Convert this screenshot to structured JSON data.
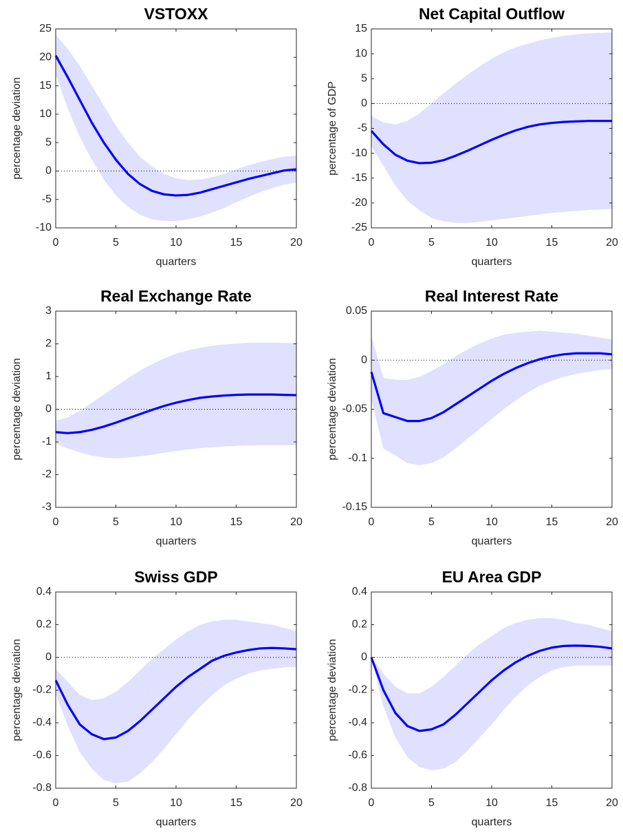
{
  "chart_data": [
    {
      "type": "line",
      "title": "VSTOXX",
      "xlabel": "quarters",
      "ylabel": "percentage deviation",
      "x": [
        0,
        1,
        2,
        3,
        4,
        5,
        6,
        7,
        8,
        9,
        10,
        11,
        12,
        13,
        14,
        15,
        16,
        17,
        18,
        19,
        20
      ],
      "values": [
        20.3,
        16.5,
        12.5,
        8.5,
        5,
        2,
        -0.5,
        -2.3,
        -3.5,
        -4.1,
        -4.3,
        -4.2,
        -3.8,
        -3.2,
        -2.6,
        -2,
        -1.4,
        -0.9,
        -0.4,
        0.1,
        0.3
      ],
      "upper": [
        24,
        21.5,
        18.5,
        15,
        11.5,
        8,
        5,
        2.5,
        0.8,
        -0.5,
        -1.3,
        -1.6,
        -1.5,
        -1.1,
        -0.5,
        0.3,
        1,
        1.6,
        2.1,
        2.5,
        2.7
      ],
      "lower": [
        17,
        11,
        6,
        2,
        -1.5,
        -4.3,
        -6.3,
        -7.7,
        -8.5,
        -8.8,
        -8.8,
        -8.5,
        -8,
        -7.3,
        -6.5,
        -5.5,
        -4.6,
        -3.7,
        -3,
        -2.4,
        -2
      ],
      "color": "#0000ff",
      "band_color": "#e0e0ff",
      "zero_line": true,
      "xlim": [
        0,
        20
      ],
      "xticks": [
        0,
        5,
        10,
        15,
        20
      ],
      "ylim": [
        -10,
        25
      ],
      "yticks": [
        -10,
        -5,
        0,
        5,
        10,
        15,
        20,
        25
      ]
    },
    {
      "type": "line",
      "title": "Net Capital Outflow",
      "xlabel": "quarters",
      "ylabel": "percentage of GDP",
      "x": [
        0,
        1,
        2,
        3,
        4,
        5,
        6,
        7,
        8,
        9,
        10,
        11,
        12,
        13,
        14,
        15,
        16,
        17,
        18,
        19,
        20
      ],
      "values": [
        -5.5,
        -8.2,
        -10.3,
        -11.5,
        -12,
        -11.9,
        -11.4,
        -10.5,
        -9.5,
        -8.4,
        -7.3,
        -6.3,
        -5.4,
        -4.7,
        -4.2,
        -3.9,
        -3.7,
        -3.6,
        -3.5,
        -3.5,
        -3.5
      ],
      "upper": [
        -2.5,
        -3.8,
        -4.2,
        -3.5,
        -2,
        0,
        2,
        4,
        5.8,
        7.5,
        9,
        10.3,
        11.3,
        12,
        12.7,
        13.2,
        13.6,
        13.9,
        14.1,
        14.2,
        14.3
      ],
      "lower": [
        -8.5,
        -12.5,
        -16.5,
        -19.5,
        -21.5,
        -23,
        -23.7,
        -24,
        -24,
        -23.8,
        -23.5,
        -23.2,
        -22.9,
        -22.6,
        -22.3,
        -22,
        -21.8,
        -21.6,
        -21.4,
        -21.3,
        -21.2
      ],
      "color": "#0000ff",
      "band_color": "#e0e0ff",
      "zero_line": true,
      "xlim": [
        0,
        20
      ],
      "xticks": [
        0,
        5,
        10,
        15,
        20
      ],
      "ylim": [
        -25,
        15
      ],
      "yticks": [
        -25,
        -20,
        -15,
        -10,
        -5,
        0,
        5,
        10,
        15
      ]
    },
    {
      "type": "line",
      "title": "Real Exchange Rate",
      "xlabel": "quarters",
      "ylabel": "percentage deviation",
      "x": [
        0,
        1,
        2,
        3,
        4,
        5,
        6,
        7,
        8,
        9,
        10,
        11,
        12,
        13,
        14,
        15,
        16,
        17,
        18,
        19,
        20
      ],
      "values": [
        -0.7,
        -0.73,
        -0.7,
        -0.63,
        -0.53,
        -0.41,
        -0.28,
        -0.15,
        -0.02,
        0.1,
        0.2,
        0.28,
        0.35,
        0.39,
        0.42,
        0.44,
        0.45,
        0.45,
        0.45,
        0.44,
        0.43
      ],
      "upper": [
        -0.35,
        -0.25,
        -0.05,
        0.2,
        0.45,
        0.7,
        0.95,
        1.18,
        1.38,
        1.55,
        1.7,
        1.8,
        1.88,
        1.94,
        1.98,
        2.01,
        2.03,
        2.04,
        2.04,
        2.03,
        2.02
      ],
      "lower": [
        -1.05,
        -1.2,
        -1.32,
        -1.42,
        -1.48,
        -1.5,
        -1.48,
        -1.44,
        -1.39,
        -1.33,
        -1.28,
        -1.23,
        -1.19,
        -1.16,
        -1.14,
        -1.12,
        -1.11,
        -1.1,
        -1.1,
        -1.1,
        -1.1
      ],
      "color": "#0000ff",
      "band_color": "#e0e0ff",
      "zero_line": true,
      "xlim": [
        0,
        20
      ],
      "xticks": [
        0,
        5,
        10,
        15,
        20
      ],
      "ylim": [
        -3,
        3
      ],
      "yticks": [
        -3,
        -2,
        -1,
        0,
        1,
        2,
        3
      ]
    },
    {
      "type": "line",
      "title": "Real Interest Rate",
      "xlabel": "quarters",
      "ylabel": "percentage deviation",
      "x": [
        0,
        1,
        2,
        3,
        4,
        5,
        6,
        7,
        8,
        9,
        10,
        11,
        12,
        13,
        14,
        15,
        16,
        17,
        18,
        19,
        20
      ],
      "values": [
        -0.012,
        -0.054,
        -0.058,
        -0.062,
        -0.062,
        -0.059,
        -0.053,
        -0.045,
        -0.037,
        -0.029,
        -0.021,
        -0.014,
        -0.008,
        -0.003,
        0.001,
        0.004,
        0.006,
        0.007,
        0.007,
        0.007,
        0.006
      ],
      "upper": [
        0.025,
        -0.018,
        -0.02,
        -0.02,
        -0.017,
        -0.011,
        -0.004,
        0.004,
        0.011,
        0.017,
        0.022,
        0.026,
        0.028,
        0.029,
        0.03,
        0.029,
        0.028,
        0.027,
        0.025,
        0.023,
        0.021
      ],
      "lower": [
        -0.04,
        -0.09,
        -0.097,
        -0.105,
        -0.107,
        -0.105,
        -0.099,
        -0.09,
        -0.08,
        -0.07,
        -0.06,
        -0.05,
        -0.041,
        -0.033,
        -0.026,
        -0.021,
        -0.017,
        -0.014,
        -0.012,
        -0.01,
        -0.009
      ],
      "color": "#0000ff",
      "band_color": "#e0e0ff",
      "zero_line": true,
      "xlim": [
        0,
        20
      ],
      "xticks": [
        0,
        5,
        10,
        15,
        20
      ],
      "ylim": [
        -0.15,
        0.05
      ],
      "yticks": [
        -0.15,
        -0.1,
        -0.05,
        0,
        0.05
      ]
    },
    {
      "type": "line",
      "title": "Swiss GDP",
      "xlabel": "quarters",
      "ylabel": "percentage deviation",
      "x": [
        0,
        1,
        2,
        3,
        4,
        5,
        6,
        7,
        8,
        9,
        10,
        11,
        12,
        13,
        14,
        15,
        16,
        17,
        18,
        19,
        20
      ],
      "values": [
        -0.14,
        -0.29,
        -0.41,
        -0.47,
        -0.5,
        -0.49,
        -0.45,
        -0.39,
        -0.32,
        -0.25,
        -0.18,
        -0.12,
        -0.07,
        -0.02,
        0.01,
        0.03,
        0.045,
        0.055,
        0.058,
        0.055,
        0.05
      ],
      "upper": [
        -0.07,
        -0.15,
        -0.23,
        -0.26,
        -0.25,
        -0.21,
        -0.15,
        -0.08,
        -0.01,
        0.05,
        0.11,
        0.16,
        0.2,
        0.22,
        0.23,
        0.23,
        0.22,
        0.21,
        0.2,
        0.18,
        0.16
      ],
      "lower": [
        -0.22,
        -0.42,
        -0.58,
        -0.68,
        -0.75,
        -0.77,
        -0.76,
        -0.71,
        -0.64,
        -0.56,
        -0.47,
        -0.38,
        -0.3,
        -0.23,
        -0.17,
        -0.13,
        -0.1,
        -0.08,
        -0.07,
        -0.06,
        -0.06
      ],
      "color": "#0000ff",
      "band_color": "#e0e0ff",
      "zero_line": true,
      "xlim": [
        0,
        20
      ],
      "xticks": [
        0,
        5,
        10,
        15,
        20
      ],
      "ylim": [
        -0.8,
        0.4
      ],
      "yticks": [
        -0.8,
        -0.6,
        -0.4,
        -0.2,
        0,
        0.2,
        0.4
      ]
    },
    {
      "type": "line",
      "title": "EU Area GDP",
      "xlabel": "quarters",
      "ylabel": "percentage deviation",
      "x": [
        0,
        1,
        2,
        3,
        4,
        5,
        6,
        7,
        8,
        9,
        10,
        11,
        12,
        13,
        14,
        15,
        16,
        17,
        18,
        19,
        20
      ],
      "values": [
        0,
        -0.2,
        -0.34,
        -0.42,
        -0.45,
        -0.44,
        -0.41,
        -0.35,
        -0.28,
        -0.21,
        -0.14,
        -0.08,
        -0.03,
        0.01,
        0.04,
        0.06,
        0.07,
        0.072,
        0.07,
        0.065,
        0.055
      ],
      "upper": [
        0,
        -0.1,
        -0.18,
        -0.22,
        -0.22,
        -0.18,
        -0.12,
        -0.05,
        0.02,
        0.08,
        0.13,
        0.18,
        0.21,
        0.23,
        0.24,
        0.24,
        0.23,
        0.21,
        0.2,
        0.18,
        0.16
      ],
      "lower": [
        0,
        -0.3,
        -0.49,
        -0.61,
        -0.67,
        -0.69,
        -0.68,
        -0.64,
        -0.57,
        -0.49,
        -0.41,
        -0.32,
        -0.24,
        -0.17,
        -0.12,
        -0.08,
        -0.06,
        -0.05,
        -0.05,
        -0.05,
        -0.05
      ],
      "color": "#0000ff",
      "band_color": "#e0e0ff",
      "zero_line": true,
      "xlim": [
        0,
        20
      ],
      "xticks": [
        0,
        5,
        10,
        15,
        20
      ],
      "ylim": [
        -0.8,
        0.4
      ],
      "yticks": [
        -0.8,
        -0.6,
        -0.4,
        -0.2,
        0,
        0.2,
        0.4
      ]
    }
  ]
}
